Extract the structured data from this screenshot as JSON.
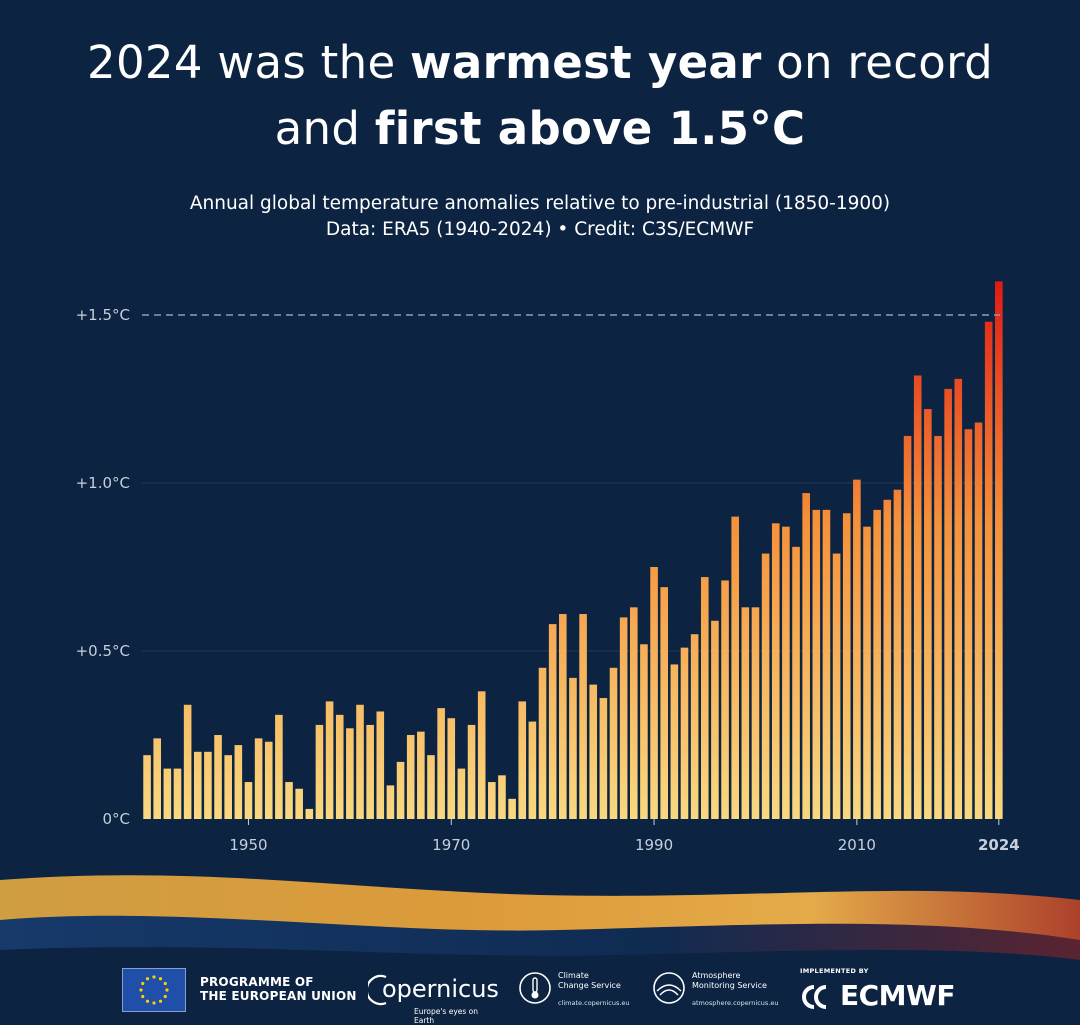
{
  "title": {
    "line1_a": "2024 was the ",
    "line1_b": "warmest year",
    "line1_c": " on record",
    "line2_a": "and ",
    "line2_b": "first above 1.5°C"
  },
  "subtitle": {
    "line1": "Annual global temperature anomalies relative to pre-industrial (1850-1900)",
    "line2": "Data: ERA5 (1940-2024) • Credit: C3S/ECMWF"
  },
  "chart_data": {
    "type": "bar",
    "title": "Annual global temperature anomalies relative to pre-industrial (1850-1900)",
    "xlabel": "",
    "ylabel": "",
    "ylim": [
      0,
      1.6
    ],
    "yticks": [
      {
        "value": 0,
        "label": "0°C"
      },
      {
        "value": 0.5,
        "label": "+0.5°C"
      },
      {
        "value": 1.0,
        "label": "+1.0°C"
      },
      {
        "value": 1.5,
        "label": "+1.5°C"
      }
    ],
    "xticks": [
      {
        "year": 1950,
        "label": "1950",
        "bold": false
      },
      {
        "year": 1970,
        "label": "1970",
        "bold": false
      },
      {
        "year": 1990,
        "label": "1990",
        "bold": false
      },
      {
        "year": 2010,
        "label": "2010",
        "bold": false
      },
      {
        "year": 2024,
        "label": "2024",
        "bold": true
      }
    ],
    "reference_line": {
      "value": 1.5,
      "style": "dashed"
    },
    "grid": true,
    "start_year": 1940,
    "values": [
      0.19,
      0.24,
      0.15,
      0.15,
      0.34,
      0.2,
      0.2,
      0.25,
      0.19,
      0.22,
      0.11,
      0.24,
      0.23,
      0.31,
      0.11,
      0.09,
      0.03,
      0.28,
      0.35,
      0.31,
      0.27,
      0.34,
      0.28,
      0.32,
      0.1,
      0.17,
      0.25,
      0.26,
      0.19,
      0.33,
      0.3,
      0.15,
      0.28,
      0.38,
      0.11,
      0.13,
      0.06,
      0.35,
      0.29,
      0.45,
      0.58,
      0.61,
      0.42,
      0.61,
      0.4,
      0.36,
      0.45,
      0.6,
      0.63,
      0.52,
      0.75,
      0.69,
      0.46,
      0.51,
      0.55,
      0.72,
      0.59,
      0.71,
      0.9,
      0.63,
      0.63,
      0.79,
      0.88,
      0.87,
      0.81,
      0.97,
      0.92,
      0.92,
      0.79,
      0.91,
      1.01,
      0.87,
      0.92,
      0.95,
      0.98,
      1.14,
      1.32,
      1.22,
      1.14,
      1.28,
      1.31,
      1.16,
      1.18,
      1.48,
      1.6
    ],
    "colors": {
      "low": "#f8d880",
      "mid": "#f5913a",
      "high": "#e01a14",
      "refline": "#8a9cb3",
      "grid": "#23395a"
    }
  },
  "footer": {
    "eu_line1": "PROGRAMME OF",
    "eu_line2": "THE EUROPEAN UNION",
    "copernicus_name": "opernicus",
    "copernicus_tagline": "Europe's eyes on Earth",
    "c3s_line1": "Climate",
    "c3s_line2": "Change Service",
    "c3s_url": "climate.copernicus.eu",
    "cams_line1": "Atmosphere",
    "cams_line2": "Monitoring Service",
    "cams_url": "atmosphere.copernicus.eu",
    "implemented_by": "IMPLEMENTED BY",
    "ecmwf": "ECMWF"
  }
}
